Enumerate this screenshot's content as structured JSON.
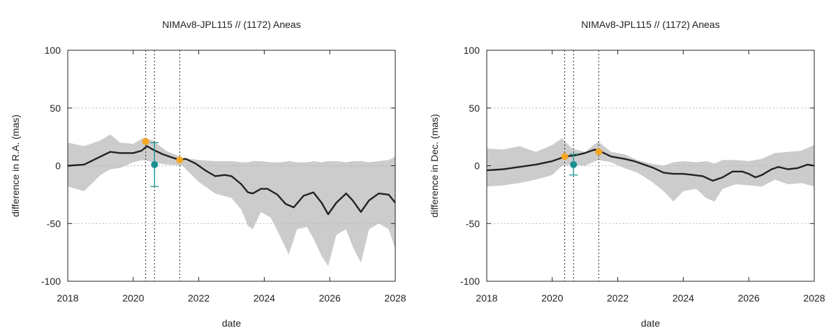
{
  "chart_data": [
    {
      "type": "line",
      "title": "NIMAv8-JPL115 // (1172) Aneas",
      "xlabel": "date",
      "ylabel": "difference in R.A. (mas)",
      "xlim": [
        2018,
        2028
      ],
      "ylim": [
        -100,
        100
      ],
      "x_ticks": [
        2018,
        2020,
        2022,
        2024,
        2026,
        2028
      ],
      "y_ticks": [
        -100,
        -50,
        0,
        50,
        100
      ],
      "grid": "horizontal dashed",
      "colors": {
        "band": "#cccccc",
        "line": "#222222",
        "orange": "#f5a623",
        "teal": "#1a9090"
      },
      "vertical_lines": [
        2020.38,
        2020.65,
        2021.42
      ],
      "series": [
        {
          "kind": "line",
          "x": [
            2018.0,
            2018.5,
            2019.0,
            2019.3,
            2019.6,
            2020.0,
            2020.25,
            2020.42,
            2020.6,
            2020.9,
            2021.2,
            2021.42,
            2021.6,
            2021.9,
            2022.2,
            2022.5,
            2022.8,
            2023.0,
            2023.3,
            2023.5,
            2023.65,
            2023.9,
            2024.1,
            2024.4,
            2024.65,
            2024.9,
            2025.2,
            2025.5,
            2025.75,
            2025.95,
            2026.2,
            2026.5,
            2026.7,
            2026.95,
            2027.2,
            2027.5,
            2027.8,
            2028.0
          ],
          "y": [
            0,
            1,
            8,
            12,
            11,
            11,
            13,
            17,
            14,
            10,
            7,
            5,
            6,
            2,
            -4,
            -9,
            -8,
            -9,
            -16,
            -23,
            -24,
            -20,
            -20,
            -25,
            -33,
            -36,
            -26,
            -23,
            -32,
            -42,
            -32,
            -24,
            -30,
            -40,
            -30,
            -24,
            -25,
            -32
          ]
        },
        {
          "kind": "band",
          "x": [
            2018.0,
            2018.5,
            2019.0,
            2019.3,
            2019.6,
            2020.0,
            2020.3,
            2020.6,
            2021.0,
            2021.5,
            2022.0,
            2022.5,
            2023.0,
            2023.3,
            2023.5,
            2023.65,
            2023.9,
            2024.2,
            2024.5,
            2024.75,
            2025.0,
            2025.3,
            2025.5,
            2025.75,
            2025.95,
            2026.2,
            2026.5,
            2026.7,
            2026.95,
            2027.2,
            2027.5,
            2027.8,
            2028.0
          ],
          "upper": [
            20,
            17,
            22,
            27,
            20,
            19,
            24,
            22,
            13,
            7,
            5,
            4,
            4,
            3,
            3,
            4,
            4,
            3,
            3,
            4,
            3,
            3,
            4,
            3,
            4,
            4,
            3,
            4,
            4,
            3,
            4,
            5,
            8
          ],
          "lower": [
            -18,
            -22,
            -8,
            -3,
            -2,
            3,
            5,
            3,
            1,
            0,
            -14,
            -24,
            -28,
            -38,
            -52,
            -55,
            -40,
            -45,
            -62,
            -77,
            -55,
            -53,
            -63,
            -78,
            -87,
            -60,
            -55,
            -70,
            -84,
            -55,
            -50,
            -55,
            -72
          ]
        },
        {
          "kind": "points",
          "color": "orange",
          "x": [
            2020.38,
            2021.42
          ],
          "y": [
            21,
            5
          ]
        },
        {
          "kind": "points",
          "color": "teal",
          "x": [
            2020.65
          ],
          "y": [
            1
          ],
          "error": [
            19
          ]
        }
      ]
    },
    {
      "type": "line",
      "title": "NIMAv8-JPL115 // (1172) Aneas",
      "xlabel": "date",
      "ylabel": "difference in Dec. (mas)",
      "xlim": [
        2018,
        2028
      ],
      "ylim": [
        -100,
        100
      ],
      "x_ticks": [
        2018,
        2020,
        2022,
        2024,
        2026,
        2028
      ],
      "y_ticks": [
        -100,
        -50,
        0,
        50,
        100
      ],
      "grid": "horizontal dashed",
      "colors": {
        "band": "#cccccc",
        "line": "#222222",
        "orange": "#f5a623",
        "teal": "#1a9090"
      },
      "vertical_lines": [
        2020.38,
        2020.65,
        2021.42
      ],
      "series": [
        {
          "kind": "line",
          "x": [
            2018.0,
            2018.5,
            2019.0,
            2019.5,
            2020.0,
            2020.4,
            2020.7,
            2021.0,
            2021.3,
            2021.5,
            2021.8,
            2022.2,
            2022.5,
            2022.8,
            2023.1,
            2023.4,
            2023.7,
            2024.0,
            2024.3,
            2024.6,
            2024.9,
            2025.2,
            2025.5,
            2025.8,
            2026.0,
            2026.2,
            2026.4,
            2026.7,
            2026.9,
            2027.2,
            2027.5,
            2027.8,
            2028.0
          ],
          "y": [
            -4,
            -3,
            -1,
            1,
            4,
            8,
            9,
            11,
            14,
            12,
            8,
            6,
            4,
            1,
            -2,
            -6,
            -7,
            -7,
            -8,
            -9,
            -13,
            -10,
            -5,
            -5,
            -7,
            -10,
            -8,
            -3,
            -1,
            -3,
            -2,
            1,
            0
          ]
        },
        {
          "kind": "band",
          "x": [
            2018.0,
            2018.5,
            2019.0,
            2019.5,
            2020.0,
            2020.3,
            2020.6,
            2021.0,
            2021.4,
            2021.8,
            2022.2,
            2022.6,
            2023.0,
            2023.4,
            2023.7,
            2024.0,
            2024.4,
            2024.7,
            2024.95,
            2025.2,
            2025.6,
            2026.0,
            2026.4,
            2026.8,
            2027.2,
            2027.6,
            2028.0
          ],
          "upper": [
            15,
            14,
            17,
            12,
            18,
            24,
            15,
            12,
            21,
            12,
            10,
            5,
            2,
            0,
            3,
            4,
            3,
            4,
            2,
            5,
            5,
            4,
            6,
            11,
            12,
            13,
            18
          ],
          "lower": [
            -18,
            -17,
            -15,
            -12,
            -8,
            0,
            1,
            0,
            5,
            3,
            -2,
            -6,
            -13,
            -22,
            -31,
            -22,
            -20,
            -28,
            -31,
            -20,
            -16,
            -17,
            -18,
            -12,
            -16,
            -15,
            -18
          ]
        },
        {
          "kind": "points",
          "color": "orange",
          "x": [
            2020.38,
            2021.42
          ],
          "y": [
            8,
            12
          ]
        },
        {
          "kind": "points",
          "color": "teal",
          "x": [
            2020.65
          ],
          "y": [
            1
          ],
          "error": [
            9
          ]
        }
      ]
    }
  ]
}
